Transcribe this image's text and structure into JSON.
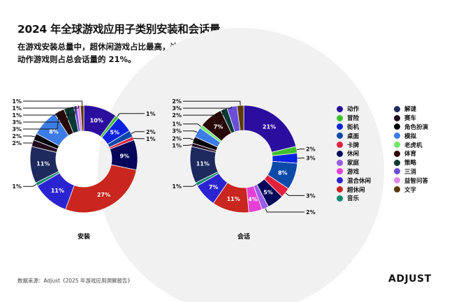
{
  "title": "2024 年全球游戏应用子类别安装和会话量",
  "subtitle_lines": [
    "在游戏安装总量中，超休闲游戏占比最高，达到 27%；",
    "动作游戏则占总会话量的 21%。"
  ],
  "source": "数据来源：Adjust《2025 年游戏应用洞察报告》",
  "logo": "ADJUST",
  "chart_data": [
    {
      "type": "pie",
      "subtype": "donut",
      "label": "安装",
      "categories": [
        "动作",
        "冒险",
        "街机",
        "桌面",
        "卡牌",
        "休闲",
        "家庭",
        "游戏",
        "超休闲",
        "混合休闲",
        "音乐",
        "解谜",
        "赛车",
        "角色扮演",
        "模拟",
        "老虎机",
        "体育",
        "策略",
        "三消",
        "益智问答",
        "文字"
      ],
      "values": [
        10,
        1,
        5,
        2,
        1,
        9,
        0,
        0,
        27,
        11,
        1,
        11,
        2,
        2,
        8,
        0,
        3,
        3,
        1,
        1,
        1
      ],
      "unit": "%"
    },
    {
      "type": "pie",
      "subtype": "donut",
      "label": "会话",
      "categories": [
        "动作",
        "冒险",
        "街机",
        "桌面",
        "卡牌",
        "休闲",
        "家庭",
        "游戏",
        "超休闲",
        "混合休闲",
        "音乐",
        "解谜",
        "赛车",
        "角色扮演",
        "模拟",
        "老虎机",
        "体育",
        "策略",
        "三消",
        "益智问答",
        "文字"
      ],
      "values": [
        21,
        2,
        3,
        8,
        3,
        5,
        2,
        4,
        11,
        7,
        1,
        11,
        1,
        2,
        3,
        1,
        7,
        2,
        3,
        0,
        2
      ],
      "unit": "%"
    }
  ],
  "legend": [
    {
      "label": "动作",
      "color": "#2a0f9e"
    },
    {
      "label": "冒险",
      "color": "#3fbf2e"
    },
    {
      "label": "街机",
      "color": "#0a22e0"
    },
    {
      "label": "桌面",
      "color": "#0b4aa8"
    },
    {
      "label": "卡牌",
      "color": "#e0203c"
    },
    {
      "label": "休闲",
      "color": "#05075a"
    },
    {
      "label": "家庭",
      "color": "#9a5ce6"
    },
    {
      "label": "游戏",
      "color": "#e53fd6"
    },
    {
      "label": "混合休闲",
      "color": "#2a24d0"
    },
    {
      "label": "超休闲",
      "color": "#c8261e"
    },
    {
      "label": "音乐",
      "color": "#0e8a6c"
    },
    {
      "label": "解谜",
      "color": "#1e2a5e"
    },
    {
      "label": "赛车",
      "color": "#220a1e"
    },
    {
      "label": "角色扮演",
      "color": "#050505"
    },
    {
      "label": "模拟",
      "color": "#3c7ce6"
    },
    {
      "label": "老虎机",
      "color": "#6ee86a"
    },
    {
      "label": "体育",
      "color": "#2a0806"
    },
    {
      "label": "策略",
      "color": "#0a3a36"
    },
    {
      "label": "三消",
      "color": "#6a4ed8"
    },
    {
      "label": "益智问答",
      "color": "#e08ae6"
    },
    {
      "label": "文字",
      "color": "#5a3a08"
    }
  ]
}
